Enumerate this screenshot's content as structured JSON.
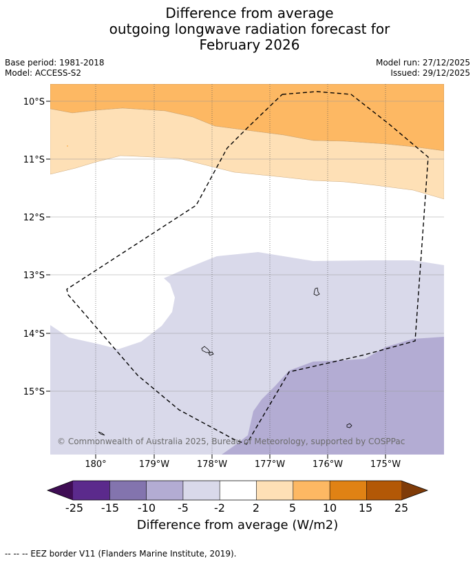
{
  "title": {
    "line1": "Difference from average",
    "line2": "outgoing longwave radiation forecast for",
    "line3": "February 2026"
  },
  "meta": {
    "base_period": "Base period: 1981-2018",
    "model": "Model: ACCESS-S2",
    "model_run": "Model run: 27/12/2025",
    "issued": "Issued: 29/12/2025"
  },
  "map": {
    "lat_labels": [
      "10°S",
      "11°S",
      "12°S",
      "13°S",
      "14°S",
      "15°S"
    ],
    "lon_labels": [
      "180°",
      "179°W",
      "178°W",
      "177°W",
      "176°W",
      "175°W"
    ],
    "copyright": "© Commonwealth of Australia 2025, Bureau of Meteorology, supported by COSPPac"
  },
  "colorbar": {
    "ticks": [
      "-25",
      "-15",
      "-10",
      "-5",
      "-2",
      "2",
      "5",
      "10",
      "15",
      "25"
    ],
    "colors": [
      "#3f0d54",
      "#5b2a8c",
      "#8374ae",
      "#b3acd3",
      "#d9d9ea",
      "#ffffff",
      "#fee0b6",
      "#fdb863",
      "#e08214",
      "#b35806",
      "#7f3b08"
    ],
    "title": "Difference from average (W/m2)"
  },
  "footer": "--  --  -- EEZ border V11 (Flanders Marine Institute, 2019)."
}
